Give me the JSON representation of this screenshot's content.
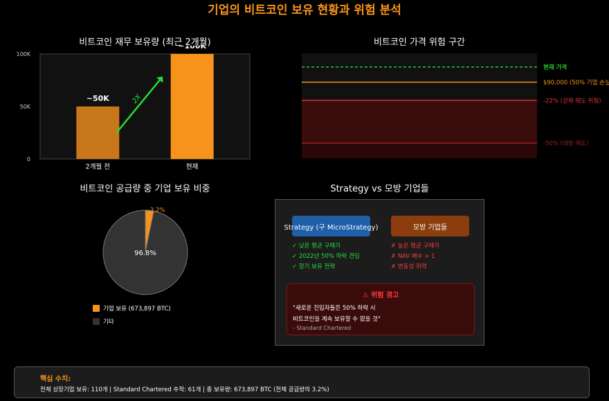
{
  "title": "기업의 비트코인 보유 현황과 위험 분석",
  "chart_data": [
    {
      "type": "bar",
      "title": "비트코인 재무 보유량 (최근 2개월)",
      "categories": [
        "2개월 전",
        "현재"
      ],
      "values": [
        50000,
        100000
      ],
      "data_labels": [
        "~50K",
        "~100K"
      ],
      "y_ticks": [
        "0",
        "50K",
        "100K"
      ],
      "ylim": [
        0,
        100000
      ],
      "annotation": "2X",
      "colors": [
        "#c8781a",
        "#f7931a"
      ]
    },
    {
      "type": "line",
      "title": "비트코인 가격 위험 구간",
      "levels": [
        {
          "label": "현재 가격",
          "value": 0,
          "color": "#22cc22",
          "style": "dashed"
        },
        {
          "label": "$90,000 (50% 기업 손실)",
          "value": -0.1,
          "color": "#f7931a",
          "style": "solid"
        },
        {
          "label": "-22% (강제 매도 위험)",
          "value": -0.22,
          "color": "#e03030",
          "style": "solid"
        },
        {
          "label": "-50% (대량 매도)",
          "value": -0.5,
          "color": "#9a2020",
          "style": "solid"
        }
      ]
    },
    {
      "type": "pie",
      "title": "비트코인 공급량 중 기업 보유 비중",
      "slices": [
        {
          "name": "기업 보유 (673,897 BTC)",
          "value": 3.2,
          "label": "3.2%",
          "color": "#f7931a"
        },
        {
          "name": "기타",
          "value": 96.8,
          "label": "96.8%",
          "color": "#333333"
        }
      ],
      "legend_placement": "bottom"
    }
  ],
  "comparison": {
    "title": "Strategy vs 모방 기업들",
    "strategy_label": "Strategy (구 MicroStrategy)",
    "copycats_label": "모방 기업들",
    "strategy_points": [
      "✓ 낮은 평균 구매가",
      "✓ 2022년 50% 하락 견딤",
      "✓ 장기 보유 전략"
    ],
    "copycat_points": [
      "✗ 높은 평균 구매가",
      "✗ NAV 배수 > 1",
      "✗ 변동성 취약"
    ],
    "warning_icon": "warning-triangle-icon",
    "warning_title": "⚠ 위험 경고",
    "warning_quote_line1": "\"새로운 진입자들은 50% 하락 시",
    "warning_quote_line2": "비트코인을 계속 보유할 수 없을 것\"",
    "warning_source": "- Standard Chartered"
  },
  "footer": {
    "heading": "핵심 수치:",
    "text": "전체 상장기업 보유: 110개 | Standard Chartered 추적: 61개 | 총 보유량: 673,897 BTC (전체 공급량의 3.2%)"
  }
}
